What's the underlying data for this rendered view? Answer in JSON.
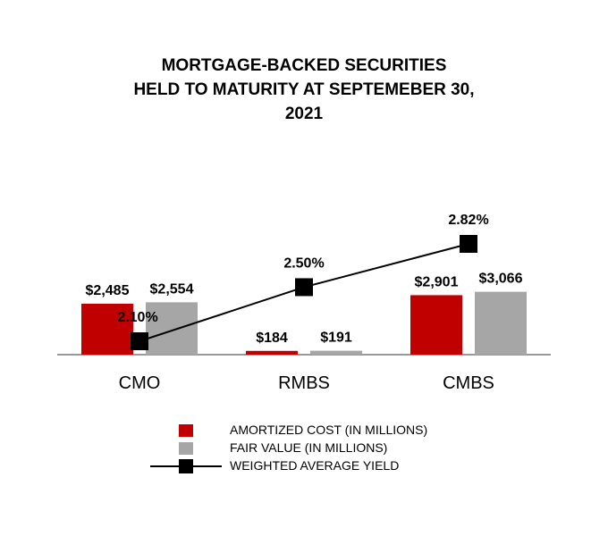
{
  "chart_data": {
    "type": "bar",
    "title_lines": [
      "MORTGAGE-BACKED SECURITIES",
      "HELD TO MATURITY AT SEPTEMEBER 30,",
      "2021"
    ],
    "categories": [
      "CMO",
      "RMBS",
      "CMBS"
    ],
    "series": [
      {
        "name": "AMORTIZED COST (IN MILLIONS)",
        "type": "bar",
        "color": "#c00000",
        "values": [
          2485,
          184,
          2901
        ],
        "labels": [
          "$2,485",
          "$184",
          "$2,901"
        ]
      },
      {
        "name": "FAIR VALUE (IN MILLIONS)",
        "type": "bar",
        "color": "#a6a6a6",
        "values": [
          2554,
          191,
          3066
        ],
        "labels": [
          "$2,554",
          "$191",
          "$3,066"
        ]
      },
      {
        "name": "WEIGHTED AVERAGE YIELD",
        "type": "line",
        "color": "#000000",
        "values": [
          2.1,
          2.5,
          2.82
        ],
        "labels": [
          "2.10%",
          "2.50%",
          "2.82%"
        ]
      }
    ],
    "axis_line_color": "#999999",
    "grid": false,
    "legend_position": "bottom"
  }
}
